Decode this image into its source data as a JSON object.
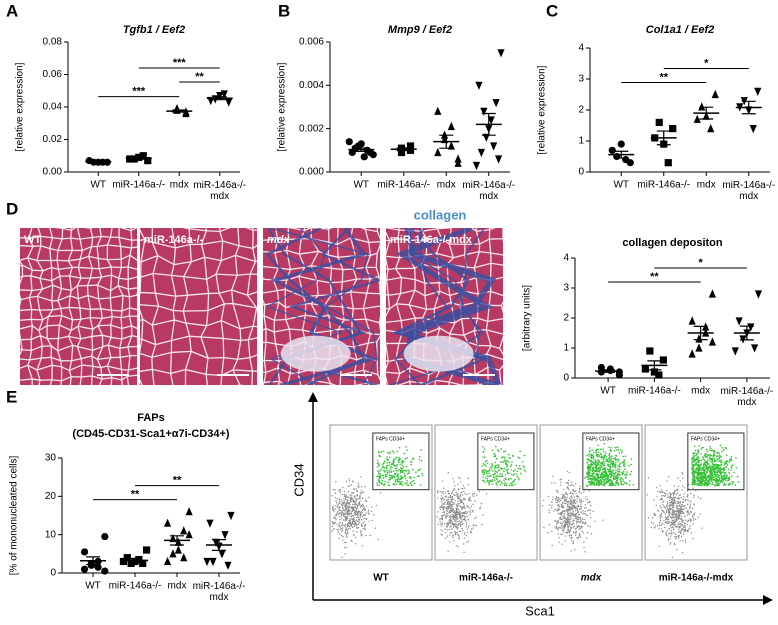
{
  "panels": [
    "A",
    "B",
    "C",
    "D",
    "E"
  ],
  "chart_data": [
    {
      "type": "dot",
      "title": "Tgfb1 / Eef2",
      "y_label": "[relative expression]",
      "categories": [
        "WT",
        "miR-146a-/-",
        "mdx",
        "miR-146a-/- mdx"
      ],
      "markers": [
        "circle",
        "square",
        "triangle-up",
        "triangle-down"
      ],
      "points": [
        [
          0.006,
          0.006,
          0.006,
          0.006,
          0.007
        ],
        [
          0.007,
          0.008,
          0.009,
          0.01,
          0.008
        ],
        [
          0.036,
          0.038,
          0.039,
          0.037
        ],
        [
          0.043,
          0.045,
          0.047,
          0.048,
          0.044
        ]
      ],
      "mean": [
        0.0063,
        0.0084,
        0.0375,
        0.0454
      ],
      "sem": [
        0.0002,
        0.0005,
        0.0007,
        0.0009
      ],
      "ylim": [
        0,
        0.08
      ],
      "yticks": [
        {
          "value": 0,
          "label": "0.00"
        },
        {
          "value": 0.02,
          "label": "0.02"
        },
        {
          "value": 0.04,
          "label": "0.04"
        },
        {
          "value": 0.06,
          "label": "0.06"
        },
        {
          "value": 0.08,
          "label": "0.08"
        }
      ],
      "annotations": [
        {
          "text": "***",
          "from": 0,
          "to": 2
        },
        {
          "text": "**",
          "from": 2,
          "to": 3
        },
        {
          "text": "***",
          "from": 1,
          "to": 3
        }
      ]
    },
    {
      "type": "dot",
      "title": "Mmp9 / Eef2",
      "y_label": "[relative expression]",
      "categories": [
        "WT",
        "miR-146a-/-",
        "mdx",
        "miR-146a-/- mdx"
      ],
      "markers": [
        "circle",
        "square",
        "triangle-up",
        "triangle-down"
      ],
      "points": [
        [
          0.0008,
          0.0009,
          0.001,
          0.0012,
          0.0013,
          0.0007,
          0.0011,
          0.0009,
          0.0014
        ],
        [
          0.001,
          0.0011,
          0.0009,
          0.0012
        ],
        [
          0.0006,
          0.0009,
          0.0012,
          0.0015,
          0.0017,
          0.0021,
          0.0028,
          0.0004
        ],
        [
          0.0055,
          0.004,
          0.0032,
          0.0028,
          0.0024,
          0.002,
          0.0016,
          0.0012,
          0.0009,
          0.0006,
          0.0003
        ]
      ],
      "mean": [
        0.00103,
        0.00105,
        0.0014,
        0.0022
      ],
      "sem": [
        8e-05,
        6e-05,
        0.0003,
        0.0005
      ],
      "ylim": [
        0,
        0.006
      ],
      "yticks": [
        {
          "value": 0,
          "label": "0.000"
        },
        {
          "value": 0.002,
          "label": "0.002"
        },
        {
          "value": 0.004,
          "label": "0.004"
        },
        {
          "value": 0.006,
          "label": "0.006"
        }
      ],
      "annotations": []
    },
    {
      "type": "dot",
      "title": "Col1a1 / Eef2",
      "y_label": "[relative expression]",
      "categories": [
        "WT",
        "miR-146a-/-",
        "mdx",
        "miR-146a-/- mdx"
      ],
      "markers": [
        "circle",
        "square",
        "triangle-up",
        "triangle-down"
      ],
      "points": [
        [
          0.3,
          0.5,
          0.9,
          0.4,
          0.7
        ],
        [
          1.4,
          1.6,
          0.9,
          0.3,
          1.1
        ],
        [
          2.5,
          2.1,
          1.8,
          1.4,
          1.7
        ],
        [
          2.6,
          2.3,
          2.0,
          1.4,
          2.1
        ]
      ],
      "mean": [
        0.56,
        1.1,
        1.9,
        2.08
      ],
      "sem": [
        0.11,
        0.22,
        0.19,
        0.2
      ],
      "ylim": [
        0,
        4
      ],
      "yticks": [
        0,
        1,
        2,
        3,
        4
      ],
      "annotations": [
        {
          "text": "**",
          "from": 0,
          "to": 2
        },
        {
          "text": "*",
          "from": 1,
          "to": 3
        }
      ]
    },
    {
      "type": "dot",
      "title": "collagen depositon",
      "y_label": "[arbitrary units]",
      "categories": [
        "WT",
        "miR-146a-/-",
        "mdx",
        "miR-146a-/- mdx"
      ],
      "markers": [
        "circle",
        "square",
        "triangle-up",
        "triangle-down"
      ],
      "points": [
        [
          0.1,
          0.2,
          0.3,
          0.25,
          0.35,
          0.2
        ],
        [
          0.6,
          0.9,
          0.2,
          0.1,
          0.3
        ],
        [
          2.8,
          1.9,
          1.7,
          1.3,
          1.0,
          1.5,
          0.8,
          1.2
        ],
        [
          2.8,
          1.9,
          1.7,
          1.5,
          1.3,
          1.0,
          0.9
        ]
      ],
      "mean": [
        0.23,
        0.42,
        1.5,
        1.5
      ],
      "sem": [
        0.04,
        0.15,
        0.22,
        0.23
      ],
      "ylim": [
        0,
        4
      ],
      "yticks": [
        0,
        1,
        2,
        3,
        4
      ],
      "annotations": [
        {
          "text": "**",
          "from": 0,
          "to": 2
        },
        {
          "text": "*",
          "from": 1,
          "to": 3
        }
      ]
    },
    {
      "type": "dot",
      "title": "FAPs",
      "subtitle": "(CD45-CD31-Sca1+α7i-CD34+)",
      "y_label": "[% of mononucleated cells]",
      "categories": [
        "WT",
        "miR-146a-/-",
        "mdx",
        "miR-146a-/- mdx"
      ],
      "markers": [
        "circle",
        "square",
        "triangle-up",
        "triangle-down"
      ],
      "points": [
        [
          9.5,
          5.5,
          3,
          2.5,
          2,
          1.5,
          1,
          0.5
        ],
        [
          6,
          4,
          3.5,
          3,
          2.5,
          2.5,
          3
        ],
        [
          16,
          13,
          11,
          9,
          8,
          6,
          5,
          4,
          3,
          10
        ],
        [
          15,
          13,
          10,
          8,
          7,
          5,
          3,
          2,
          3
        ]
      ],
      "mean": [
        3.2,
        3.3,
        8.5,
        7.3
      ],
      "sem": [
        1,
        0.5,
        1.2,
        1.4
      ],
      "ylim": [
        0,
        30
      ],
      "yticks": [
        0,
        10,
        20,
        30
      ],
      "annotations": [
        {
          "text": "**",
          "from": 0,
          "to": 2
        },
        {
          "text": "**",
          "from": 1,
          "to": 3
        }
      ]
    }
  ],
  "histology": {
    "stain_label": "collagen",
    "labels": [
      "WT",
      "miR-146a-/-",
      "mdx",
      "miR-146a-/-mdx"
    ]
  },
  "flow": {
    "y_label": "CD34",
    "x_label": "Sca1",
    "gate_label": "FAPs CD34+",
    "labels": [
      "WT",
      "miR-146a-/-",
      "mdx",
      "miR-146a-/-mdx"
    ]
  }
}
